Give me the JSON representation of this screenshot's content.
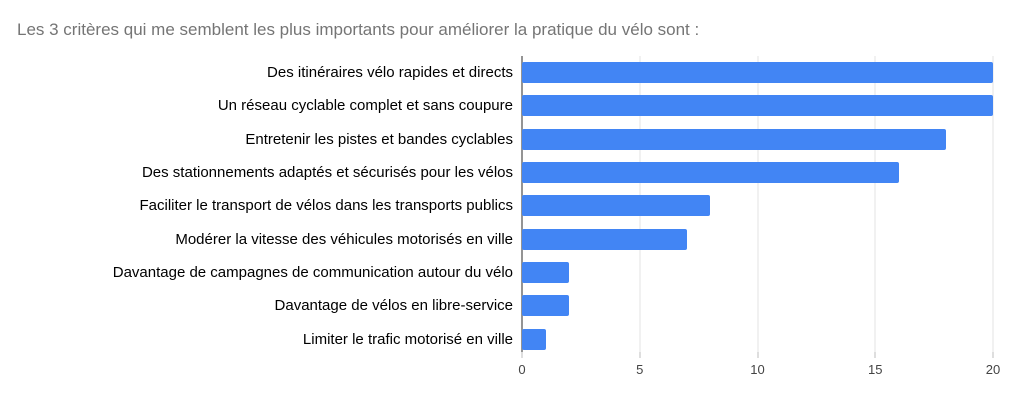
{
  "chart_data": {
    "type": "bar",
    "orientation": "horizontal",
    "title": "Les 3 critères qui me semblent les plus importants pour améliorer la pratique du vélo sont :",
    "categories": [
      "Des itinéraires vélo rapides et directs",
      "Un réseau cyclable complet et sans coupure",
      "Entretenir les pistes et bandes cyclables",
      "Des stationnements adaptés et sécurisés pour les vélos",
      "Faciliter le transport de vélos dans les transports publics",
      "Modérer la vitesse des véhicules motorisés en ville",
      "Davantage de campagnes de communication autour du vélo",
      "Davantage de vélos en libre-service",
      "Limiter le trafic motorisé en ville"
    ],
    "values": [
      20,
      20,
      18,
      16,
      8,
      7,
      2,
      2,
      1
    ],
    "xlabel": "",
    "ylabel": "",
    "xlim": [
      0,
      20
    ],
    "x_ticks": [
      0,
      5,
      10,
      15,
      20
    ],
    "grid": true,
    "legend_position": "none",
    "colors": {
      "bar": "#4285F4",
      "gridline": "#e3e3e3",
      "baseline": "#949494",
      "tick_mark": "#bdbdbd",
      "tick_label": "#444444",
      "category_label": "#000000",
      "title": "#757575",
      "background": "#ffffff"
    }
  }
}
